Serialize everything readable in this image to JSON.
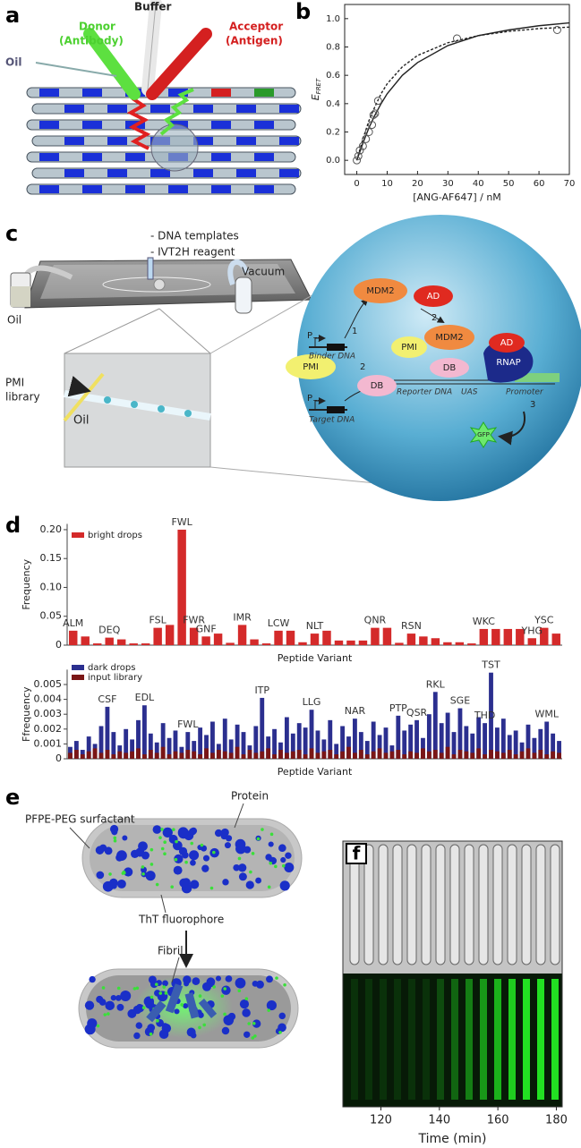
{
  "panels": {
    "a": {
      "label": "a",
      "buffer": "Buffer",
      "donor": [
        "Donor",
        "(Antibody)"
      ],
      "acceptor": [
        "Acceptor",
        "(Antigen)"
      ],
      "oil": "Oil"
    },
    "c": {
      "label": "c",
      "reagents": [
        "- DNA templates",
        "- IVT2H reagent"
      ],
      "vacuum": "Vacuum",
      "oil": "Oil",
      "library": [
        "PMI",
        "library"
      ],
      "inset_oil": "Oil",
      "circle": {
        "mdm2_top": "MDM2",
        "ad_top": "AD",
        "step_1": "1",
        "step_2a": "2",
        "step_2b": "2",
        "step_3": "3",
        "p1": "P",
        "p1_sub": "T7",
        "binder_dna": "Binder DNA",
        "pmi_left": "PMI",
        "db_left": "DB",
        "p2": "P",
        "p2_sub": "T7",
        "target_dna": "Target DNA",
        "pmi_center": "PMI",
        "mdm2_center": "MDM2",
        "ad_center": "AD",
        "db_center": "DB",
        "rnap": "RNAP",
        "reporter_dna": "Reporter DNA",
        "uas": "UAS",
        "promoter": "Promoter",
        "gfp": "GFP"
      }
    },
    "d": {
      "label": "d"
    },
    "e": {
      "label": "e",
      "surfactant": "PFPE-PEG surfactant",
      "protein": "Protein",
      "tht": "ThT fluorophore",
      "fibril": "Fibril"
    }
  },
  "chart_data": [
    {
      "type": "scatter",
      "panel": "b",
      "xlabel": "[ANG-AF647] / nM",
      "ylabel": "E",
      "ylabel_sub": "FRET",
      "x": [
        0,
        0.5,
        1,
        2,
        3,
        4,
        5,
        5.5,
        6,
        7,
        33,
        66
      ],
      "values": [
        0.0,
        0.03,
        0.07,
        0.1,
        0.15,
        0.2,
        0.25,
        0.32,
        0.33,
        0.42,
        0.86,
        0.92
      ],
      "color": "#555555",
      "series": [
        {
          "style": "solid",
          "x": [
            0,
            2,
            4,
            6,
            8,
            10,
            15,
            20,
            30,
            40,
            50,
            60,
            70
          ],
          "values": [
            0,
            0.12,
            0.23,
            0.32,
            0.4,
            0.47,
            0.6,
            0.69,
            0.81,
            0.88,
            0.92,
            0.95,
            0.97
          ]
        },
        {
          "style": "dashed",
          "x": [
            0,
            2,
            4,
            6,
            8,
            10,
            15,
            20,
            30,
            40,
            50,
            60,
            70
          ],
          "values": [
            0,
            0.15,
            0.28,
            0.38,
            0.47,
            0.54,
            0.66,
            0.74,
            0.83,
            0.88,
            0.91,
            0.93,
            0.94
          ]
        }
      ],
      "xlim": [
        -4,
        70
      ],
      "xticks": [
        0,
        10,
        20,
        30,
        40,
        50,
        60,
        70
      ],
      "ylim": [
        -0.1,
        1.1
      ],
      "yticks": [
        {
          "value": 0,
          "label": "0.0"
        },
        0.2,
        0.4,
        0.6,
        0.8,
        {
          "value": 1,
          "label": "1.0"
        }
      ]
    },
    {
      "type": "bar",
      "ylabel": "Frequency",
      "xlabel": "Peptide Variant",
      "legend": "upper left",
      "categories": [
        "ALM",
        null,
        null,
        "DEQ",
        null,
        null,
        null,
        "FSL",
        null,
        "FWL",
        "FWR",
        "GNF",
        null,
        null,
        "IMR",
        null,
        null,
        "LCW",
        null,
        null,
        "NLT",
        null,
        null,
        null,
        null,
        "QNR",
        null,
        null,
        "RSN",
        null,
        null,
        null,
        null,
        null,
        "WKC",
        null,
        null,
        null,
        "YHG",
        "YSC",
        null
      ],
      "series": [
        {
          "name": "bright drops",
          "color": "#d42a2a",
          "values": [
            0.025,
            0.015,
            0.003,
            0.013,
            0.01,
            0.003,
            0.003,
            0.03,
            0.035,
            0.2,
            0.03,
            0.015,
            0.02,
            0.004,
            0.035,
            0.01,
            0.003,
            0.025,
            0.025,
            0.005,
            0.02,
            0.025,
            0.008,
            0.008,
            0.008,
            0.03,
            0.03,
            0.004,
            0.02,
            0.015,
            0.012,
            0.005,
            0.005,
            0.003,
            0.028,
            0.028,
            0.028,
            0.028,
            0.012,
            0.03,
            0.02
          ]
        }
      ],
      "ylim": [
        0,
        0.21
      ],
      "yticks": [
        0,
        0.05,
        {
          "value": 0.1,
          "label": "0.10"
        },
        0.15,
        {
          "value": 0.2,
          "label": "0.20"
        }
      ]
    },
    {
      "type": "bar",
      "ylabel": "Ffrequency",
      "xlabel": "Peptide Variant",
      "legend": "upper left",
      "categories": [
        null,
        null,
        null,
        null,
        null,
        null,
        "CSF",
        null,
        null,
        null,
        null,
        null,
        "EDL",
        null,
        null,
        null,
        null,
        null,
        null,
        "FWL",
        null,
        null,
        null,
        null,
        null,
        null,
        null,
        null,
        null,
        null,
        null,
        "ITP",
        null,
        null,
        null,
        null,
        null,
        null,
        null,
        "LLG",
        null,
        null,
        null,
        null,
        null,
        null,
        "NAR",
        null,
        null,
        null,
        null,
        null,
        null,
        "PTP",
        null,
        null,
        "QSR",
        null,
        null,
        "RKL",
        null,
        null,
        null,
        "SGE",
        null,
        null,
        null,
        "THD",
        "TST",
        null,
        null,
        null,
        null,
        null,
        null,
        null,
        null,
        "WML",
        null,
        null
      ],
      "series": [
        {
          "name": "dark drops",
          "color": "#2b2f8f",
          "values": [
            0.0008,
            0.0012,
            0.0006,
            0.0015,
            0.001,
            0.0022,
            0.0035,
            0.0018,
            0.0009,
            0.002,
            0.0013,
            0.0026,
            0.0036,
            0.0017,
            0.0011,
            0.0024,
            0.0014,
            0.0019,
            0.0008,
            0.0018,
            0.0012,
            0.0021,
            0.0016,
            0.0025,
            0.001,
            0.0027,
            0.0013,
            0.0023,
            0.0018,
            0.0009,
            0.0022,
            0.0041,
            0.0015,
            0.002,
            0.0011,
            0.0028,
            0.0017,
            0.0024,
            0.0021,
            0.0033,
            0.0019,
            0.0013,
            0.0026,
            0.001,
            0.0022,
            0.0015,
            0.0027,
            0.0018,
            0.0012,
            0.0025,
            0.0016,
            0.0021,
            0.0009,
            0.0029,
            0.0019,
            0.0023,
            0.0026,
            0.0014,
            0.003,
            0.0045,
            0.0024,
            0.0031,
            0.0018,
            0.0034,
            0.0022,
            0.0017,
            0.0028,
            0.0024,
            0.0058,
            0.0021,
            0.0027,
            0.0016,
            0.0019,
            0.0011,
            0.0023,
            0.0014,
            0.002,
            0.0025,
            0.0017,
            0.0012
          ]
        },
        {
          "name": "input library",
          "color": "#7a1616",
          "values": [
            0.0004,
            0.0006,
            0.0003,
            0.0005,
            0.0007,
            0.0004,
            0.0006,
            0.0003,
            0.0005,
            0.0004,
            0.0005,
            0.0007,
            0.0003,
            0.0006,
            0.0004,
            0.0008,
            0.0003,
            0.0005,
            0.0004,
            0.0006,
            0.0005,
            0.0003,
            0.0007,
            0.0004,
            0.0006,
            0.0005,
            0.0004,
            0.0008,
            0.0003,
            0.0006,
            0.0004,
            0.0005,
            0.0007,
            0.0003,
            0.0006,
            0.0004,
            0.0005,
            0.0006,
            0.0003,
            0.0007,
            0.0004,
            0.0005,
            0.0006,
            0.0003,
            0.0005,
            0.0008,
            0.0004,
            0.0006,
            0.0003,
            0.0005,
            0.0007,
            0.0004,
            0.0005,
            0.0006,
            0.0003,
            0.0005,
            0.0004,
            0.0007,
            0.0005,
            0.0006,
            0.0004,
            0.0008,
            0.0003,
            0.0006,
            0.0005,
            0.0004,
            0.0007,
            0.0003,
            0.0006,
            0.0005,
            0.0004,
            0.0006,
            0.0003,
            0.0005,
            0.0007,
            0.0004,
            0.0006,
            0.0003,
            0.0005,
            0.0004
          ]
        }
      ],
      "ylim": [
        0,
        0.006
      ],
      "yticks": [
        0,
        0.001,
        0.002,
        0.003,
        0.004,
        0.005
      ]
    },
    {
      "type": "image",
      "panel": "f",
      "xlabel": "Time (min)",
      "xlim": [
        107,
        182
      ],
      "xticks": [
        120,
        140,
        160,
        180
      ]
    }
  ]
}
